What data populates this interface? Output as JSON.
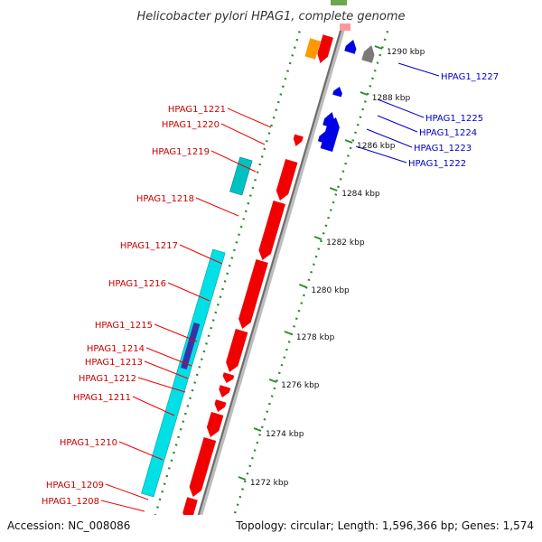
{
  "title": "Helicobacter pylori HPAG1, complete genome",
  "accession": "Accession: NC_008086",
  "topology": "Topology: circular; Length: 1,596,366 bp; Genes: 1,574",
  "colors": {
    "red": "#f20000",
    "blue": "#0000e6",
    "cyan": "#00e0e6",
    "teal": "#00c2c2",
    "navy": "#3a33a8",
    "orange": "#ff9900",
    "gray": "#7a7a7a",
    "dot": "#2e8b2e",
    "label_red": "#cc0000",
    "label_blue": "#0000cc"
  },
  "ticks": [
    "1290 kbp",
    "1288 kbp",
    "1286 kbp",
    "1284 kbp",
    "1282 kbp",
    "1280 kbp",
    "1278 kbp",
    "1276 kbp",
    "1274 kbp",
    "1272 kbp"
  ],
  "left_genes": [
    "HPAG1_1221",
    "HPAG1_1220",
    "HPAG1_1219",
    "HPAG1_1218",
    "HPAG1_1217",
    "HPAG1_1216",
    "HPAG1_1215",
    "HPAG1_1214",
    "HPAG1_1213",
    "HPAG1_1212",
    "HPAG1_1211",
    "HPAG1_1210",
    "HPAG1_1209",
    "HPAG1_1208"
  ],
  "right_genes": [
    "HPAG1_1227",
    "HPAG1_1225",
    "HPAG1_1224",
    "HPAG1_1223",
    "HPAG1_1222"
  ]
}
